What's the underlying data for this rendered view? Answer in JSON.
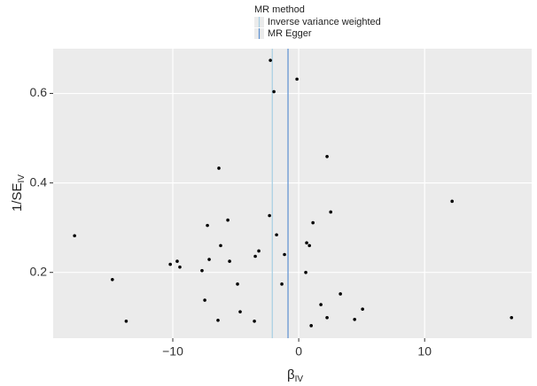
{
  "chart_data": {
    "type": "scatter",
    "xlabel": "β",
    "xlabel_sub": "IV",
    "ylabel": "1/SE",
    "ylabel_sub": "IV",
    "legend_title": "MR method",
    "lines": [
      {
        "name": "Inverse variance weighted",
        "color": "#a6cee3",
        "value": -2.1
      },
      {
        "name": "MR Egger",
        "color": "#5b8fd0",
        "value": -0.85
      }
    ],
    "color": "#000000",
    "x": [
      -17.8,
      -2.25,
      -1.97,
      -0.14,
      -6.34,
      2.25,
      12.18,
      2.54,
      1.13,
      -2.32,
      -5.63,
      -1.76,
      0.63,
      0.85,
      -7.25,
      -6.2,
      -3.17,
      -3.45,
      -1.13,
      -7.11,
      -5.49,
      -9.65,
      -10.2,
      -9.44,
      -7.68,
      0.56,
      -14.8,
      -4.86,
      -1.34,
      -7.46,
      3.31,
      1.76,
      -4.65,
      5.07,
      -6.41,
      -3.52,
      2.25,
      4.44,
      -13.7,
      16.9,
      0.99
    ],
    "values": [
      0.282,
      0.674,
      0.604,
      0.632,
      0.433,
      0.459,
      0.359,
      0.335,
      0.311,
      0.327,
      0.317,
      0.284,
      0.266,
      0.26,
      0.305,
      0.26,
      0.248,
      0.236,
      0.24,
      0.229,
      0.225,
      0.225,
      0.218,
      0.212,
      0.204,
      0.2,
      0.184,
      0.174,
      0.174,
      0.138,
      0.152,
      0.128,
      0.112,
      0.118,
      0.093,
      0.091,
      0.099,
      0.095,
      0.091,
      0.099,
      0.081
    ],
    "xlim": [
      -19.5,
      18.5
    ],
    "ylim": [
      0.053,
      0.7
    ],
    "xticks": [
      {
        "value": -10,
        "label": "−10"
      },
      0,
      10
    ],
    "yticks": [
      0.2,
      0.4,
      0.6
    ],
    "grid": true
  }
}
